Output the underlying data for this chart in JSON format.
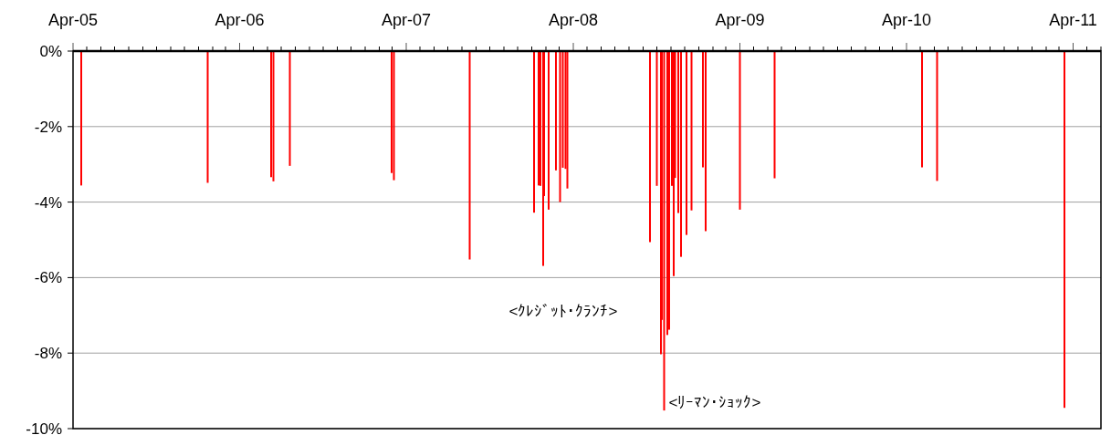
{
  "chart_data": {
    "type": "bar",
    "x": [
      "2005-04-19",
      "2006-01-21",
      "2006-06-09",
      "2006-06-14",
      "2006-07-20",
      "2007-02-28",
      "2007-03-05",
      "2007-08-18",
      "2008-01-06",
      "2008-01-16",
      "2008-01-20",
      "2008-01-26",
      "2008-01-28",
      "2008-02-07",
      "2008-02-23",
      "2008-03-03",
      "2008-03-09",
      "2008-03-15",
      "2008-03-19",
      "2008-09-16",
      "2008-10-01",
      "2008-10-10",
      "2008-10-12",
      "2008-10-17",
      "2008-10-24",
      "2008-10-28",
      "2008-11-03",
      "2008-11-07",
      "2008-11-10",
      "2008-11-17",
      "2008-11-23",
      "2008-12-05",
      "2008-12-16",
      "2009-01-10",
      "2009-01-16",
      "2009-04-01",
      "2009-06-16",
      "2010-05-05",
      "2010-06-07",
      "2011-03-13"
    ],
    "series": [
      {
        "color": "#ff0000",
        "values": [
          -3.56,
          -3.49,
          -3.34,
          -3.45,
          -3.04,
          -3.23,
          -3.42,
          -5.52,
          -4.28,
          -3.56,
          -3.57,
          -5.69,
          -3.84,
          -4.2,
          -3.16,
          -4.0,
          -3.09,
          -3.12,
          -3.64,
          -5.06,
          -3.57,
          -8.03,
          -7.12,
          -9.52,
          -7.52,
          -7.38,
          -3.57,
          -5.96,
          -3.36,
          -4.29,
          -5.45,
          -4.87,
          -4.22,
          -3.08,
          -4.77,
          -4.2,
          -3.37,
          -3.08,
          -3.44,
          -9.45
        ]
      }
    ],
    "xlim": [
      "2005-04-01",
      "2011-06-01"
    ],
    "xticks": [
      {
        "value": "2005-04-01",
        "label": "Apr-05"
      },
      {
        "value": "2005-05-01",
        "label": null
      },
      {
        "value": "2005-06-01",
        "label": null
      },
      {
        "value": "2005-07-01",
        "label": null
      },
      {
        "value": "2005-08-01",
        "label": null
      },
      {
        "value": "2005-09-01",
        "label": null
      },
      {
        "value": "2005-10-01",
        "label": null
      },
      {
        "value": "2005-11-01",
        "label": null
      },
      {
        "value": "2005-12-01",
        "label": null
      },
      {
        "value": "2006-01-01",
        "label": null
      },
      {
        "value": "2006-02-01",
        "label": null
      },
      {
        "value": "2006-03-01",
        "label": null
      },
      {
        "value": "2006-04-01",
        "label": "Apr-06"
      },
      {
        "value": "2006-05-01",
        "label": null
      },
      {
        "value": "2006-06-01",
        "label": null
      },
      {
        "value": "2006-07-01",
        "label": null
      },
      {
        "value": "2006-08-01",
        "label": null
      },
      {
        "value": "2006-09-01",
        "label": null
      },
      {
        "value": "2006-10-01",
        "label": null
      },
      {
        "value": "2006-11-01",
        "label": null
      },
      {
        "value": "2006-12-01",
        "label": null
      },
      {
        "value": "2007-01-01",
        "label": null
      },
      {
        "value": "2007-02-01",
        "label": null
      },
      {
        "value": "2007-03-01",
        "label": null
      },
      {
        "value": "2007-04-01",
        "label": "Apr-07"
      },
      {
        "value": "2007-05-01",
        "label": null
      },
      {
        "value": "2007-06-01",
        "label": null
      },
      {
        "value": "2007-07-01",
        "label": null
      },
      {
        "value": "2007-08-01",
        "label": null
      },
      {
        "value": "2007-09-01",
        "label": null
      },
      {
        "value": "2007-10-01",
        "label": null
      },
      {
        "value": "2007-11-01",
        "label": null
      },
      {
        "value": "2007-12-01",
        "label": null
      },
      {
        "value": "2008-01-01",
        "label": null
      },
      {
        "value": "2008-02-01",
        "label": null
      },
      {
        "value": "2008-03-01",
        "label": null
      },
      {
        "value": "2008-04-01",
        "label": "Apr-08"
      },
      {
        "value": "2008-05-01",
        "label": null
      },
      {
        "value": "2008-06-01",
        "label": null
      },
      {
        "value": "2008-07-01",
        "label": null
      },
      {
        "value": "2008-08-01",
        "label": null
      },
      {
        "value": "2008-09-01",
        "label": null
      },
      {
        "value": "2008-10-01",
        "label": null
      },
      {
        "value": "2008-11-01",
        "label": null
      },
      {
        "value": "2008-12-01",
        "label": null
      },
      {
        "value": "2009-01-01",
        "label": null
      },
      {
        "value": "2009-02-01",
        "label": null
      },
      {
        "value": "2009-03-01",
        "label": null
      },
      {
        "value": "2009-04-01",
        "label": "Apr-09"
      },
      {
        "value": "2009-05-01",
        "label": null
      },
      {
        "value": "2009-06-01",
        "label": null
      },
      {
        "value": "2009-07-01",
        "label": null
      },
      {
        "value": "2009-08-01",
        "label": null
      },
      {
        "value": "2009-09-01",
        "label": null
      },
      {
        "value": "2009-10-01",
        "label": null
      },
      {
        "value": "2009-11-01",
        "label": null
      },
      {
        "value": "2009-12-01",
        "label": null
      },
      {
        "value": "2010-01-01",
        "label": null
      },
      {
        "value": "2010-02-01",
        "label": null
      },
      {
        "value": "2010-03-01",
        "label": null
      },
      {
        "value": "2010-04-01",
        "label": "Apr-10"
      },
      {
        "value": "2010-05-01",
        "label": null
      },
      {
        "value": "2010-06-01",
        "label": null
      },
      {
        "value": "2010-07-01",
        "label": null
      },
      {
        "value": "2010-08-01",
        "label": null
      },
      {
        "value": "2010-09-01",
        "label": null
      },
      {
        "value": "2010-10-01",
        "label": null
      },
      {
        "value": "2010-11-01",
        "label": null
      },
      {
        "value": "2010-12-01",
        "label": null
      },
      {
        "value": "2011-01-01",
        "label": null
      },
      {
        "value": "2011-02-01",
        "label": null
      },
      {
        "value": "2011-03-01",
        "label": null
      },
      {
        "value": "2011-04-01",
        "label": "Apr-11"
      },
      {
        "value": "2011-05-01",
        "label": null
      },
      {
        "value": "2011-06-01",
        "label": null
      }
    ],
    "ylim": [
      -10,
      0
    ],
    "yticks": [
      {
        "value": 0,
        "label": "0%"
      },
      {
        "value": -2,
        "label": "-2%"
      },
      {
        "value": -4,
        "label": "-4%"
      },
      {
        "value": -6,
        "label": "-6%"
      },
      {
        "value": -8,
        "label": "-8%"
      },
      {
        "value": -10,
        "label": "-10%"
      }
    ],
    "grid": "y",
    "annotations": [
      "<ｸﾚｼﾞｯﾄ･ｸﾗﾝﾁ>",
      {
        "text": "<ﾘｰﾏﾝ･ｼｮｯｸ>",
        "x": "2008-10-17",
        "y": -9.3
      }
    ]
  }
}
